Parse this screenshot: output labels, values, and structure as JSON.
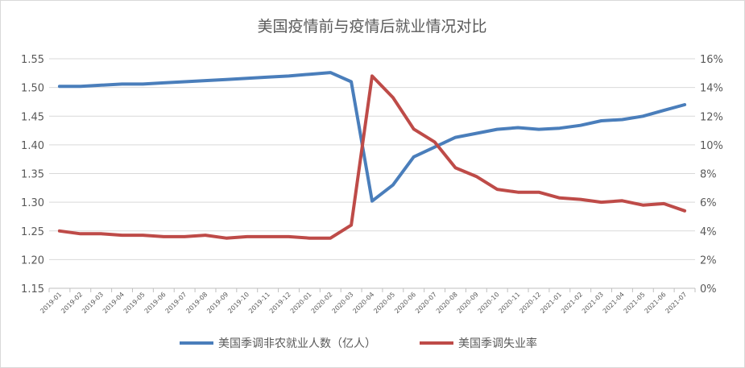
{
  "chart_data": {
    "type": "line",
    "title": "美国疫情前与疫情后就业情况对比",
    "categories": [
      "2019-01",
      "2019-02",
      "2019-03",
      "2019-04",
      "2019-05",
      "2019-06",
      "2019-07",
      "2019-08",
      "2019-09",
      "2019-10",
      "2019-11",
      "2019-12",
      "2020-01",
      "2020-02",
      "2020-03",
      "2020-04",
      "2020-05",
      "2020-06",
      "2020-07",
      "2020-08",
      "2020-09",
      "2020-10",
      "2020-11",
      "2020-12",
      "2021-01",
      "2021-02",
      "2021-03",
      "2021-04",
      "2021-05",
      "2021-06",
      "2021-07"
    ],
    "y_left": {
      "ticks": [
        "1.15",
        "1.20",
        "1.25",
        "1.30",
        "1.35",
        "1.40",
        "1.45",
        "1.50",
        "1.55"
      ],
      "range": [
        1.15,
        1.55
      ]
    },
    "y_right": {
      "ticks": [
        "0%",
        "2%",
        "4%",
        "6%",
        "8%",
        "10%",
        "12%",
        "14%",
        "16%"
      ],
      "range": [
        0,
        16
      ]
    },
    "grid": true,
    "legend_position": "bottom",
    "series": [
      {
        "name": "美国季调非农就业人数（亿人）",
        "axis": "left",
        "color": "#4a7ebb",
        "values": [
          1.502,
          1.502,
          1.504,
          1.506,
          1.506,
          1.508,
          1.51,
          1.512,
          1.514,
          1.516,
          1.518,
          1.52,
          1.523,
          1.526,
          1.51,
          1.302,
          1.33,
          1.379,
          1.396,
          1.413,
          1.42,
          1.427,
          1.43,
          1.427,
          1.429,
          1.434,
          1.442,
          1.444,
          1.45,
          1.46,
          1.47
        ]
      },
      {
        "name": "美国季调失业率",
        "axis": "right",
        "color": "#be4b48",
        "values": [
          4.0,
          3.8,
          3.8,
          3.7,
          3.7,
          3.6,
          3.6,
          3.7,
          3.5,
          3.6,
          3.6,
          3.6,
          3.5,
          3.5,
          4.4,
          14.8,
          13.3,
          11.1,
          10.2,
          8.4,
          7.8,
          6.9,
          6.7,
          6.7,
          6.3,
          6.2,
          6.0,
          6.1,
          5.8,
          5.9,
          5.4
        ]
      }
    ]
  }
}
